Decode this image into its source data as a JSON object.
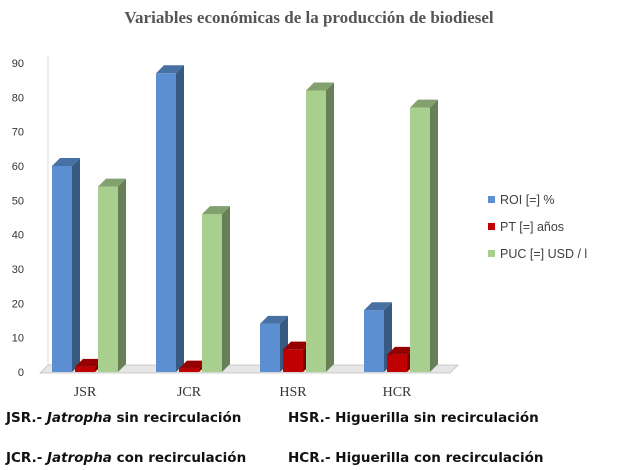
{
  "chart_data": {
    "type": "bar",
    "title": "Variables económicas de la producción de biodiesel",
    "categories": [
      "JSR",
      "JCR",
      "HSR",
      "HCR"
    ],
    "series": [
      {
        "name": "ROI [=] %",
        "color": "#5b8fd1",
        "values": [
          60,
          87,
          14,
          18
        ]
      },
      {
        "name": "PT [=] años",
        "color": "#c00000",
        "values": [
          1.5,
          1,
          6.5,
          5
        ]
      },
      {
        "name": "PUC [=] USD / l",
        "color": "#a8cf8e",
        "values": [
          54,
          46,
          82,
          77
        ]
      }
    ],
    "yticks": [
      "0",
      "10",
      "20",
      "30",
      "40",
      "50",
      "60",
      "70",
      "80",
      "90"
    ],
    "ylim": [
      0,
      90
    ],
    "grid": false,
    "legend_position": "right",
    "style": "3d-columns"
  },
  "notes": {
    "jsr": {
      "code": "JSR.-",
      "genus": "Jatropha",
      "rest": "sin recirculación"
    },
    "jcr": {
      "code": "JCR.-",
      "genus": "Jatropha",
      "rest": "con recirculación"
    },
    "hsr": {
      "text": "HSR.- Higuerilla sin recirculación"
    },
    "hcr": {
      "text": "HCR.- Higuerilla con recirculación"
    }
  }
}
